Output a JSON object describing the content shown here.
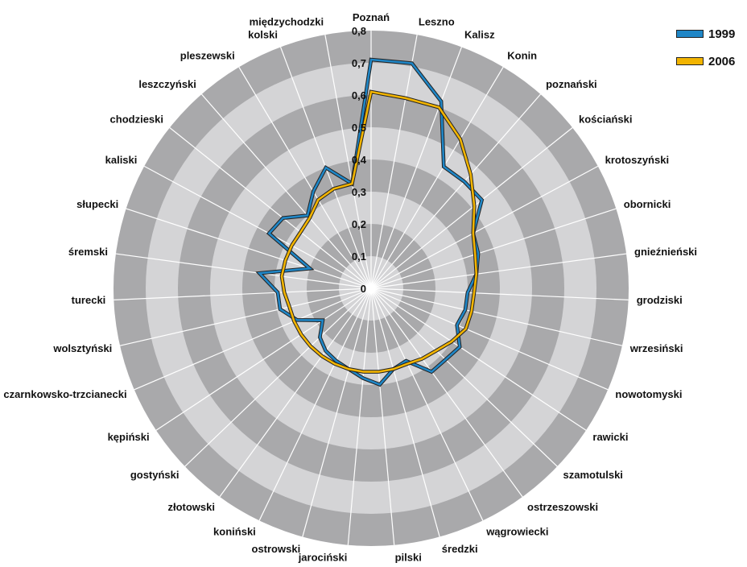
{
  "chart_data": {
    "type": "radar",
    "title": "",
    "rlim": [
      0,
      0.8
    ],
    "r_ticks": [
      "0",
      "0,1",
      "0,2",
      "0,3",
      "0,4",
      "0,5",
      "0,6",
      "0,7",
      "0,8"
    ],
    "r_tick_values": [
      0,
      0.1,
      0.2,
      0.3,
      0.4,
      0.5,
      0.6,
      0.7,
      0.8
    ],
    "grid": true,
    "legend_position": "top-right",
    "categories": [
      "Poznań",
      "Leszno",
      "Kalisz",
      "Konin",
      "poznański",
      "kościański",
      "krotoszyński",
      "obornicki",
      "gnieźnieński",
      "grodziski",
      "wrzesiński",
      "nowotomyski",
      "rawicki",
      "szamotulski",
      "ostrzeszowski",
      "wągrowiecki",
      "średzki",
      "pilski",
      "jarociński",
      "ostrowski",
      "koniński",
      "złotowski",
      "gostyński",
      "kępiński",
      "czarnkowsko-trzcianecki",
      "wolsztyński",
      "turecki",
      "śremski",
      "słupecki",
      "kaliski",
      "chodzieski",
      "leszczyński",
      "pleszewski",
      "kolski",
      "międzychodzki"
    ],
    "series": [
      {
        "name": "1999",
        "color": "#1f86c6",
        "values": [
          0.71,
          0.71,
          0.62,
          0.44,
          0.44,
          0.44,
          0.36,
          0.35,
          0.33,
          0.3,
          0.3,
          0.29,
          0.33,
          0.32,
          0.32,
          0.25,
          0.26,
          0.3,
          0.28,
          0.26,
          0.25,
          0.24,
          0.22,
          0.18,
          0.25,
          0.29,
          0.29,
          0.35,
          0.2,
          0.36,
          0.35,
          0.3,
          0.35,
          0.4,
          0.33
        ]
      },
      {
        "name": "2006",
        "color": "#f2b400",
        "values": [
          0.61,
          0.6,
          0.6,
          0.54,
          0.47,
          0.41,
          0.36,
          0.34,
          0.33,
          0.32,
          0.32,
          0.32,
          0.3,
          0.28,
          0.27,
          0.26,
          0.26,
          0.26,
          0.26,
          0.26,
          0.26,
          0.26,
          0.26,
          0.26,
          0.26,
          0.26,
          0.27,
          0.28,
          0.28,
          0.28,
          0.28,
          0.29,
          0.32,
          0.33,
          0.33
        ]
      }
    ]
  }
}
